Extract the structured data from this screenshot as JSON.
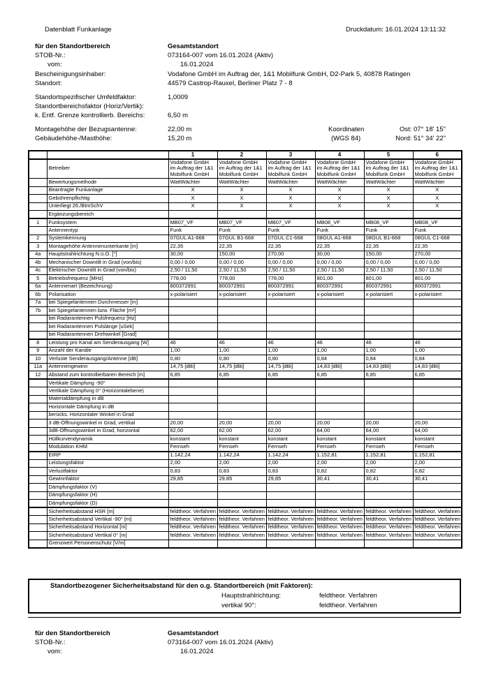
{
  "doc": {
    "title": "Datenblatt Funkanlage",
    "print_date": "Druckdatum: 16.01.2024 13:11:32"
  },
  "site": {
    "section_label": "für den Standortbereich",
    "section_value": "Gesamtstandort",
    "stob_label": "STOB-Nr.:",
    "stob_value": "073164-007 vom 16.01.2024 (Aktiv)",
    "vom_label": "vom:",
    "vom_value": "16.01.2024",
    "inhaber_label": "Bescheinigungsinhaber:",
    "inhaber_value": "Vodafone GmbH im Auftrag der, 1&1 Mobilfunk GmbH, D2-Park 5, 40878 Ratingen",
    "standort_label": "Standort:",
    "standort_value": "44579 Castrop-Rauxel, Berliner Platz 7 - 8",
    "umfeld_label": "Standortspezifischer Umfeldfaktor:",
    "umfeld_value": "1,0009",
    "bereichsfaktor_label": "Standortbereichsfaktor (Horiz/Vertik):",
    "bereichsfaktor_value": "",
    "grenze_label": "k. Entf. Grenze kontrollierb. Bereichs:",
    "grenze_value": "6,50 m",
    "montage_label": "Montagehöhe der Bezugsantenne:",
    "montage_value": "22,00 m",
    "gebaeude_label": "Gebäudehöhe-/Masthöhe:",
    "gebaeude_value": "15,20 m",
    "koordinaten_label": "Koordinaten",
    "koordinaten_system": "(WGS 84)",
    "ost_value": "Ost: 07° 18' 15\"",
    "nord_value": "Nord: 51° 34' 22\""
  },
  "table": {
    "col_numbers": [
      "1",
      "2",
      "3",
      "4",
      "5",
      "6"
    ],
    "rows": [
      {
        "num": "",
        "label": "Betreiber",
        "values": [
          "Vodafone GmbH im Auftrag der 1&1 Mobilfunk GmbH",
          "Vodafone GmbH im Auftrag der 1&1 Mobilfunk GmbH",
          "Vodafone GmbH im Auftrag der 1&1 Mobilfunk GmbH",
          "Vodafone GmbH im Auftrag der 1&1 Mobilfunk GmbH",
          "Vodafone GmbH im Auftrag der 1&1 Mobilfunk GmbH",
          "Vodafone GmbH im Auftrag der 1&1 Mobilfunk GmbH"
        ],
        "tall": true
      },
      {
        "num": "",
        "label": "Bewertungsmethode",
        "values": [
          "WattWächter",
          "WattWächter",
          "WattWächter",
          "WattWächter",
          "WattWächter",
          "WattWächter"
        ]
      },
      {
        "num": "",
        "label": "Beantragte Funkanlage",
        "values": [
          "X",
          "X",
          "X",
          "X",
          "X",
          "X"
        ],
        "center": true
      },
      {
        "num": "",
        "label": "Gebührenpflichtig",
        "values": [
          "X",
          "X",
          "X",
          "X",
          "X",
          "X"
        ],
        "center": true
      },
      {
        "num": "",
        "label": "Unterliegt 26./BImSchV",
        "values": [
          "X",
          "X",
          "X",
          "X",
          "X",
          "X"
        ],
        "center": true
      },
      {
        "num": "",
        "label": "Ergänzungsbereich",
        "values": [
          "",
          "",
          "",
          "",
          "",
          ""
        ]
      },
      {
        "num": "1",
        "label": "Funksystem",
        "values": [
          "MB07_VF",
          "MB07_VF",
          "MB07_VF",
          "MB08_VF",
          "MB08_VF",
          "MB08_VF"
        ],
        "thick_top": true
      },
      {
        "num": "",
        "label": "Antennentyp",
        "values": [
          "Funk",
          "Funk",
          "Funk",
          "Funk",
          "Funk",
          "Funk"
        ]
      },
      {
        "num": "2",
        "label": "Systemkennung",
        "values": [
          "07GUL A1-668",
          "07GUL B1-668",
          "07GUL C1-668",
          "08GUL A1-668",
          "08GUL B1-668",
          "08GUL C1-668"
        ]
      },
      {
        "num": "3",
        "label": "Montagehöhe Antennenunterkante [m]",
        "values": [
          "22,35",
          "22,35",
          "22,35",
          "22,35",
          "22,35",
          "22,35"
        ]
      },
      {
        "num": "4a",
        "label": "Hauptstrahlrichtung N.ü.O. [°]",
        "values": [
          "30,00",
          "150,00",
          "270,00",
          "30,00",
          "150,00",
          "270,00"
        ]
      },
      {
        "num": "4b",
        "label": "Mechanischer Downtilt in Grad (von/bis)",
        "values": [
          "0,00 / 0,00",
          "0,00 / 0,00",
          "0,00 / 0,00",
          "0,00 / 0,00",
          "0,00 / 0,00",
          "0,00 / 0,00"
        ]
      },
      {
        "num": "4c",
        "label": "Elektrischer Downtilt in Grad (von/bis)",
        "values": [
          "2,50 / 11,50",
          "2,50 / 11,50",
          "2,50 / 11,50",
          "2,50 / 11,50",
          "2,50 / 11,50",
          "2,50 / 11,50"
        ]
      },
      {
        "num": "5",
        "label": "Betriebsfrequenz [MHz]",
        "values": [
          "778,00",
          "778,00",
          "778,00",
          "801,00",
          "801,00",
          "801,00"
        ]
      },
      {
        "num": "6a",
        "label": "Antennenart (Bezeichnung)",
        "values": [
          "800372991",
          "800372991",
          "800372991",
          "800372991",
          "800372991",
          "800372991"
        ]
      },
      {
        "num": "6b",
        "label": "Polarisation",
        "values": [
          "x-polarisiert",
          "x-polarisiert",
          "x-polarisiert",
          "x-polarisiert",
          "x-polarisiert",
          "x-polarisiert"
        ]
      },
      {
        "num": "7a",
        "label": "bei Spiegelantennen Durchmesser [m]",
        "values": [
          "",
          "",
          "",
          "",
          "",
          ""
        ]
      },
      {
        "num": "7b",
        "label": "bei Spiegelantennen bzw. Fläche [m²]",
        "values": [
          "",
          "",
          "",
          "",
          "",
          ""
        ]
      },
      {
        "num": "",
        "label": "bei Radarantennen Pulsfrequenz [Hz]",
        "values": [
          "",
          "",
          "",
          "",
          "",
          ""
        ]
      },
      {
        "num": "",
        "label": "bei Radarantennen Pulslänge [uSek]",
        "values": [
          "",
          "",
          "",
          "",
          "",
          ""
        ]
      },
      {
        "num": "",
        "label": "bei Radarantennen Drehwinkel [Grad]",
        "values": [
          "",
          "",
          "",
          "",
          "",
          ""
        ]
      },
      {
        "num": "8",
        "label": "Leistung pro Kanal am Senderausgang  [W]",
        "values": [
          "46",
          "46",
          "46",
          "46",
          "46",
          "46"
        ],
        "thick_top": true
      },
      {
        "num": "9",
        "label": "Anzahl der Kanäle",
        "values": [
          "1,00",
          "1,00",
          "1,00",
          "1,00",
          "1,00",
          "1,00"
        ]
      },
      {
        "num": "10",
        "label": "Verluste Senderausgang/Antenne [dB]",
        "values": [
          "0,80",
          "0,80",
          "0,80",
          "0,84",
          "0,84",
          "0,84"
        ]
      },
      {
        "num": "11a",
        "label": "Antennengewinn",
        "values": [
          "14,75 [dBi]",
          "14,75 [dBi]",
          "14,75 [dBi]",
          "14,83 [dBi]",
          "14,83 [dBi]",
          "14,83 [dBi]"
        ]
      },
      {
        "num": "12",
        "label": "Abstand zum kontrollierbaren Bereich [m]",
        "values": [
          "6,85",
          "6,85",
          "6,85",
          "6,85",
          "6,85",
          "6,85"
        ],
        "thick_bottom": true
      },
      {
        "num": "",
        "label": "Vertikale Dämpfung -90°",
        "values": [
          "",
          "",
          "",
          "",
          "",
          ""
        ]
      },
      {
        "num": "",
        "label": "Vertikale Dämpfung 0° (Horizontalebene)",
        "values": [
          "",
          "",
          "",
          "",
          "",
          ""
        ]
      },
      {
        "num": "",
        "label": "Materialdämpfung in dB",
        "values": [
          "",
          "",
          "",
          "",
          "",
          ""
        ]
      },
      {
        "num": "",
        "label": "Horizontale Dämpfung in dB",
        "values": [
          "",
          "",
          "",
          "",
          "",
          ""
        ]
      },
      {
        "num": "",
        "label": "berücks. Horizontaler Winkel in Grad",
        "values": [
          "",
          "",
          "",
          "",
          "",
          ""
        ]
      },
      {
        "num": "",
        "label": "3 dB-Öffnungswinkel in Grad, vertikal",
        "values": [
          "20,00",
          "20,00",
          "20,00",
          "20,00",
          "20,00",
          "20,00"
        ]
      },
      {
        "num": "",
        "label": "3dB-Öffnungswinkel in Grad, horizontal",
        "values": [
          "62,00",
          "62,00",
          "62,00",
          "64,00",
          "64,00",
          "64,00"
        ]
      },
      {
        "num": "",
        "label": "Hüllkurvendynamik",
        "values": [
          "konstant",
          "konstant",
          "konstant",
          "konstant",
          "konstant",
          "konstant"
        ]
      },
      {
        "num": "",
        "label": "Modulation KHM",
        "values": [
          "Fernseh",
          "Fernseh",
          "Fernseh",
          "Fernseh",
          "Fernseh",
          "Fernseh"
        ]
      },
      {
        "num": "",
        "label": "EIRP",
        "values": [
          "1.142,24",
          "1.142,24",
          "1.142,24",
          "1.152,81",
          "1.152,81",
          "1.152,81"
        ],
        "thick_top": true
      },
      {
        "num": "",
        "label": "Leistungsfaktor",
        "values": [
          "2,00",
          "2,00",
          "2,00",
          "2,00",
          "2,00",
          "2,00"
        ]
      },
      {
        "num": "",
        "label": "Verlustfaktor",
        "values": [
          "0,83",
          "0,83",
          "0,83",
          "0,82",
          "0,82",
          "0,82"
        ]
      },
      {
        "num": "",
        "label": "Gewinnfaktor",
        "values": [
          "29,85",
          "29,85",
          "29,85",
          "30,41",
          "30,41",
          "30,41"
        ]
      },
      {
        "num": "",
        "label": "Dämpfungsfaktor (V)",
        "values": [
          "",
          "",
          "",
          "",
          "",
          ""
        ]
      },
      {
        "num": "",
        "label": "Dämpfungsfaktor (H)",
        "values": [
          "",
          "",
          "",
          "",
          "",
          ""
        ]
      },
      {
        "num": "",
        "label": "Dämpfungsfaktor (D)",
        "values": [
          "",
          "",
          "",
          "",
          "",
          ""
        ]
      },
      {
        "num": "",
        "label": "Sicherheitsabstand HSR [m]",
        "values": [
          "feldtheor. Verfahren",
          "feldtheor. Verfahren",
          "feldtheor. Verfahren",
          "feldtheor. Verfahren",
          "feldtheor. Verfahren",
          "feldtheor. Verfahren"
        ],
        "thick_top": true
      },
      {
        "num": "",
        "label": "Sicherheitsabstand Vertikal -90° [m]",
        "values": [
          "feldtheor. Verfahren",
          "feldtheor. Verfahren",
          "feldtheor. Verfahren",
          "feldtheor. Verfahren",
          "feldtheor. Verfahren",
          "feldtheor. Verfahren"
        ]
      },
      {
        "num": "",
        "label": "Sicherheitsabstand Horizontal [m]",
        "values": [
          "feldtheor. Verfahren",
          "feldtheor. Verfahren",
          "feldtheor. Verfahren",
          "feldtheor. Verfahren",
          "feldtheor. Verfahren",
          "feldtheor. Verfahren"
        ]
      },
      {
        "num": "",
        "label": "Sicherheitsabstand Vertikal 0° [m]",
        "values": [
          "feldtheor. Verfahren",
          "feldtheor. Verfahren",
          "feldtheor. Verfahren",
          "feldtheor. Verfahren",
          "feldtheor. Verfahren",
          "feldtheor. Verfahren"
        ]
      },
      {
        "num": "",
        "label": "Grenzwert Personenschutz [V/m]",
        "values": [
          "",
          "",
          "",
          "",
          "",
          ""
        ]
      }
    ]
  },
  "bottom_box": {
    "title": "Standortbezogener Sicherheitsabstand für den o.g. Standortbereich (mit Faktoren):",
    "line1_label": "Hauptstrahlrichtung:",
    "line1_value": "feldtheor. Verfahren",
    "line2_label": "vertikal 90°:",
    "line2_value": "feldtheor. Verfahren"
  },
  "footer": {
    "section_label": "für den Standortbereich",
    "section_value": "Gesamtstandort",
    "stob_label": "STOB-Nr.:",
    "stob_value": "073164-007 vom 16.01.2024 (Aktiv)",
    "vom_label": "vom:",
    "vom_value": "16.01.2024"
  }
}
